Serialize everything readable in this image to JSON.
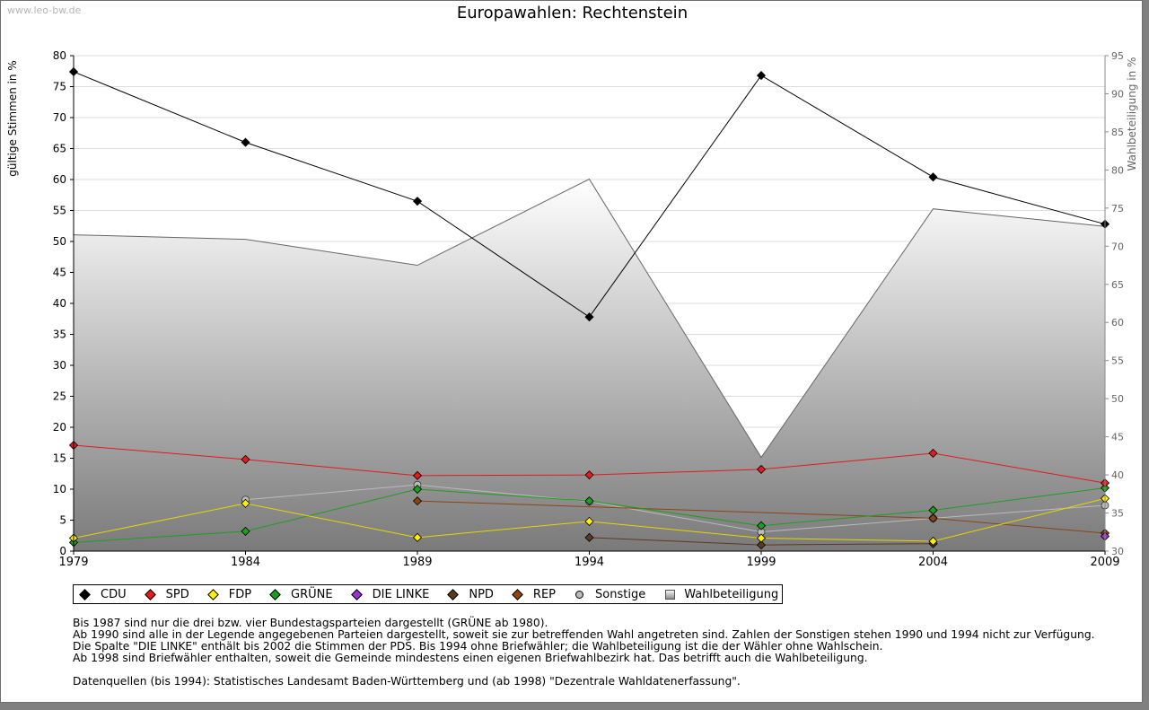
{
  "watermark": "www.leo-bw.de",
  "chart_data": {
    "type": "line",
    "title": "Europawahlen: Rechtenstein",
    "ylabel": "gültige Stimmen in %",
    "y2label": "Wahlbeteiligung in %",
    "ylim": [
      0,
      80
    ],
    "y2lim": [
      30,
      95
    ],
    "yticks": [
      0,
      5,
      10,
      15,
      20,
      25,
      30,
      35,
      40,
      45,
      50,
      55,
      60,
      65,
      70,
      75,
      80
    ],
    "y2ticks": [
      30,
      35,
      40,
      45,
      50,
      55,
      60,
      65,
      70,
      75,
      80,
      85,
      90,
      95
    ],
    "categories": [
      "1979",
      "1984",
      "1989",
      "1994",
      "1999",
      "2004",
      "2009"
    ],
    "area": {
      "name": "Wahlbeteiligung",
      "axis": "right",
      "values": [
        71.5,
        70.9,
        67.5,
        78.8,
        42.3,
        74.9,
        72.6
      ]
    },
    "series": [
      {
        "name": "CDU",
        "color": "#000000",
        "values": [
          77.4,
          66.0,
          56.5,
          37.8,
          76.8,
          60.4,
          52.8
        ]
      },
      {
        "name": "SPD",
        "color": "#e41a1c",
        "values": [
          17.1,
          14.8,
          12.2,
          12.3,
          13.2,
          15.8,
          11.0
        ]
      },
      {
        "name": "FDP",
        "color": "#ffee00",
        "values": [
          2.1,
          7.7,
          2.2,
          4.8,
          2.1,
          1.6,
          8.5
        ]
      },
      {
        "name": "GRÜNE",
        "color": "#1ca01c",
        "values": [
          1.4,
          3.2,
          10.0,
          8.1,
          4.1,
          6.6,
          10.2
        ]
      },
      {
        "name": "DIE LINKE",
        "color": "#9933cc",
        "values": [
          null,
          null,
          null,
          null,
          null,
          null,
          2.4
        ]
      },
      {
        "name": "NPD",
        "color": "#5a3a22",
        "values": [
          null,
          null,
          null,
          2.2,
          1.0,
          1.2,
          null
        ]
      },
      {
        "name": "REP",
        "color": "#8b4513",
        "values": [
          null,
          null,
          8.1,
          null,
          null,
          5.3,
          2.9
        ]
      },
      {
        "name": "Sonstige",
        "color": "#bbbbbb",
        "values": [
          null,
          8.3,
          10.7,
          8.0,
          3.1,
          5.3,
          7.4
        ]
      }
    ],
    "legend": [
      {
        "label": "CDU",
        "color": "#000000",
        "shape": "diamond"
      },
      {
        "label": "SPD",
        "color": "#e41a1c",
        "shape": "diamond"
      },
      {
        "label": "FDP",
        "color": "#ffee00",
        "shape": "diamond"
      },
      {
        "label": "GRÜNE",
        "color": "#1ca01c",
        "shape": "diamond"
      },
      {
        "label": "DIE LINKE",
        "color": "#9933cc",
        "shape": "diamond"
      },
      {
        "label": "NPD",
        "color": "#5a3a22",
        "shape": "diamond"
      },
      {
        "label": "REP",
        "color": "#8b4513",
        "shape": "diamond"
      },
      {
        "label": "Sonstige",
        "color": "#bbbbbb",
        "shape": "circle"
      },
      {
        "label": "Wahlbeteiligung",
        "color": "#999999",
        "shape": "square"
      }
    ]
  },
  "notes": [
    "Bis 1987 sind nur die drei bzw. vier Bundestagsparteien dargestellt (GRÜNE ab 1980).",
    "Ab 1990 sind alle in der Legende angegebenen Parteien dargestellt, soweit sie zur betreffenden Wahl angetreten sind. Zahlen der Sonstigen stehen 1990 und 1994 nicht zur Verfügung.",
    "Die Spalte \"DIE LINKE\" enthält bis 2002 die Stimmen der PDS. Bis 1994 ohne Briefwähler; die Wahlbeteiligung ist die der Wähler ohne Wahlschein.",
    "Ab 1998 sind Briefwähler enthalten, soweit die Gemeinde mindestens einen eigenen Briefwahlbezirk hat. Das betrifft auch die Wahlbeteiligung."
  ],
  "source": "Datenquellen (bis 1994): Statistisches Landesamt Baden-Württemberg und (ab 1998) \"Dezentrale Wahldatenerfassung\"."
}
